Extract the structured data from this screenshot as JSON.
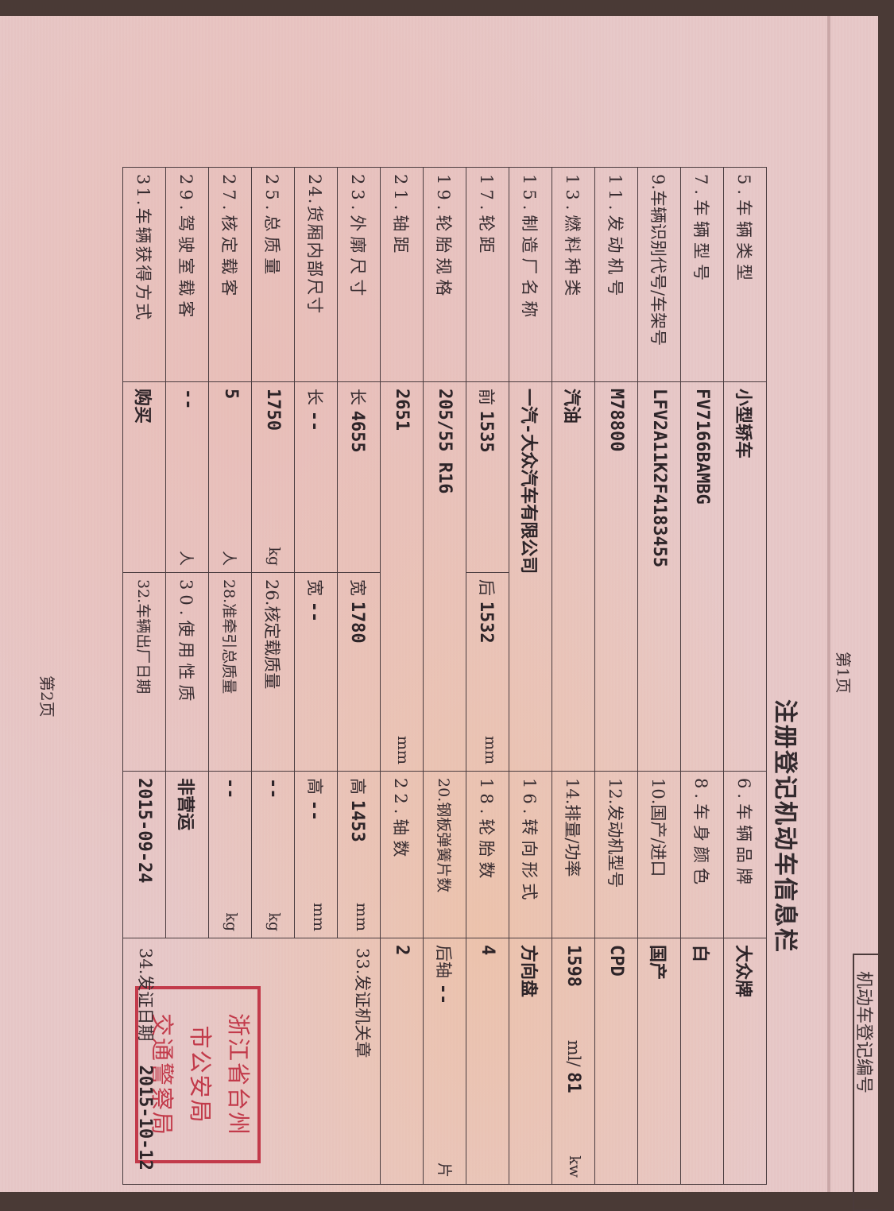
{
  "header": {
    "page1": "第1页",
    "page2": "第2页",
    "title": "注册登记机动车信息栏",
    "registration_no_label": "机动车登记编号"
  },
  "rows": {
    "r5": {
      "label": "5.车辆类型",
      "value": "小型轿车",
      "label2": "6.车辆品牌",
      "value2": "大众牌"
    },
    "r7": {
      "label": "7.车辆型号",
      "value": "FV7166BAMBG",
      "label2": "8.车身颜色",
      "value2": "白"
    },
    "r9": {
      "label": "9.车辆识别代号/车架号",
      "value": "LFV2A11K2F4183455",
      "label2": "10.国产/进口",
      "value2": "国产"
    },
    "r11": {
      "label": "11.发动机号",
      "value": "M78800",
      "label2": "12.发动机型号",
      "value2": "CPD"
    },
    "r13": {
      "label": "13.燃料种类",
      "value": "汽油",
      "label2": "14.排量/功率",
      "displacement": "1598",
      "disp_unit": "ml/",
      "power": "81",
      "power_unit": "kw"
    },
    "r15": {
      "label": "15.制造厂名称",
      "value": "一汽-大众汽车有限公司",
      "label2": "16.转向形式",
      "value2": "方向盘"
    },
    "r17": {
      "label": "17.轮距",
      "front_label": "前",
      "front": "1535",
      "rear_label": "后",
      "rear": "1532",
      "unit": "mm",
      "label2": "18.轮胎数",
      "value2": "4"
    },
    "r19": {
      "label": "19.轮胎规格",
      "value": "205/55 R16",
      "label2": "20.钢板弹簧片数",
      "axle_label": "后轴",
      "value2": "--",
      "unit2": "片"
    },
    "r21": {
      "label": "21.轴距",
      "value": "2651",
      "unit": "mm",
      "label2": "22.轴数",
      "value2": "2"
    },
    "r23": {
      "label": "23.外廓尺寸",
      "l_label": "长",
      "l": "4655",
      "w_label": "宽",
      "w": "1780",
      "h_label": "高",
      "h": "1453",
      "unit": "mm"
    },
    "r24": {
      "label": "24.货厢内部尺寸",
      "l_label": "长",
      "l": "--",
      "w_label": "宽",
      "w": "--",
      "h_label": "高",
      "h": "--",
      "unit": "mm"
    },
    "r25": {
      "label": "25.总质量",
      "value": "1750",
      "unit": "kg",
      "label2": "26.核定载质量",
      "value2": "--",
      "unit2": "kg"
    },
    "r27": {
      "label": "27.核定载客",
      "value": "5",
      "unit": "人",
      "label2": "28.准牵引总质量",
      "value2": "--",
      "unit2": "kg"
    },
    "r29": {
      "label": "29.驾驶室载客",
      "value": "--",
      "unit": "人",
      "label2": "30.使用性质",
      "value2": "非营运"
    },
    "r31": {
      "label": "31.车辆获得方式",
      "value": "购买",
      "label2": "32.车辆出厂日期",
      "value2": "2015-09-24"
    }
  },
  "issuer": {
    "label": "33.发证机关章",
    "stamp_line1": "浙江省台州",
    "stamp_line2": "市公安局",
    "stamp_line3": "交通警察局",
    "date_label": "34.发证日期",
    "date": "2015-10-12"
  },
  "colors": {
    "paper": "#e6c6c6",
    "ink": "#372c30",
    "stamp": "#c23a4a"
  }
}
